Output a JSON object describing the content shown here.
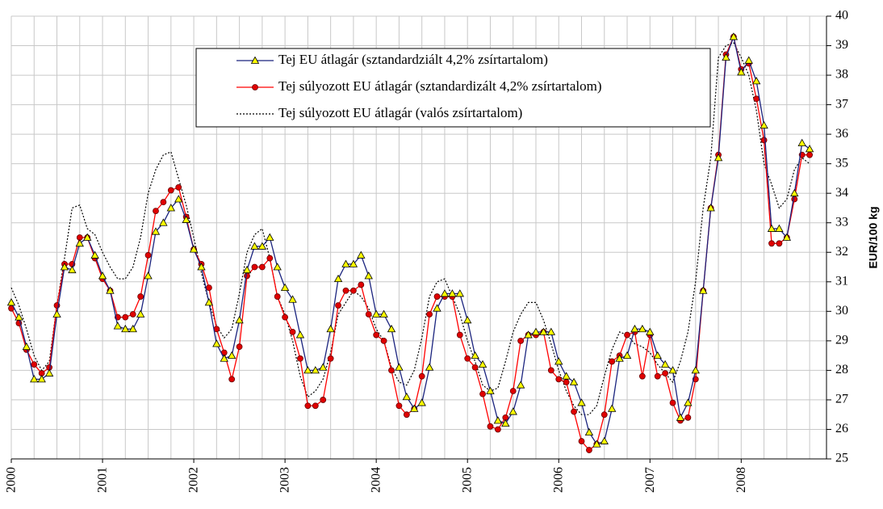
{
  "chart_data": {
    "type": "line",
    "y_label": "EUR/100 kg",
    "categories": [
      "2000",
      null,
      null,
      null,
      null,
      null,
      null,
      null,
      null,
      null,
      null,
      null,
      "2001",
      null,
      null,
      null,
      null,
      null,
      null,
      null,
      null,
      null,
      null,
      null,
      "2002",
      null,
      null,
      null,
      null,
      null,
      null,
      null,
      null,
      null,
      null,
      null,
      "2003",
      null,
      null,
      null,
      null,
      null,
      null,
      null,
      null,
      null,
      null,
      null,
      "2004",
      null,
      null,
      null,
      null,
      null,
      null,
      null,
      null,
      null,
      null,
      null,
      "2005",
      null,
      null,
      null,
      null,
      null,
      null,
      null,
      null,
      null,
      null,
      null,
      "2006",
      null,
      null,
      null,
      null,
      null,
      null,
      null,
      null,
      null,
      null,
      null,
      "2007",
      null,
      null,
      null,
      null,
      null,
      null,
      null,
      null,
      null,
      null,
      null,
      "2008",
      null,
      null,
      null,
      null,
      null,
      null,
      null,
      null,
      null
    ],
    "ylim": [
      25,
      40
    ],
    "yticks": [
      25,
      26,
      27,
      28,
      29,
      30,
      31,
      32,
      33,
      34,
      35,
      36,
      37,
      38,
      39,
      40
    ],
    "y_axis_side": "right",
    "grid": true,
    "series": [
      {
        "name": "Tej EU átlagár (sztandardziált 4,2% zsírtartalom)",
        "color": "#1a237e",
        "marker": "triangle",
        "marker_color": "#ffff00",
        "dashed": false,
        "values": [
          30.3,
          29.8,
          28.8,
          27.7,
          27.7,
          27.9,
          29.9,
          31.5,
          31.4,
          32.3,
          32.5,
          31.9,
          31.2,
          30.7,
          29.5,
          29.4,
          29.4,
          29.9,
          31.2,
          32.7,
          33.0,
          33.5,
          33.8,
          33.1,
          32.1,
          31.5,
          30.3,
          28.9,
          28.4,
          28.5,
          29.7,
          31.4,
          32.2,
          32.2,
          32.5,
          31.5,
          30.8,
          30.4,
          29.2,
          28.0,
          28.0,
          28.1,
          29.4,
          31.1,
          31.6,
          31.6,
          31.9,
          31.2,
          29.9,
          29.9,
          29.4,
          28.1,
          27.1,
          26.7,
          26.9,
          28.1,
          30.1,
          30.6,
          30.6,
          30.6,
          29.7,
          28.5,
          28.2,
          27.3,
          26.3,
          26.2,
          26.6,
          27.5,
          29.2,
          29.3,
          29.3,
          29.3,
          28.3,
          27.8,
          27.6,
          26.9,
          25.9,
          25.5,
          25.6,
          26.7,
          28.4,
          28.5,
          29.4,
          29.4,
          29.3,
          28.5,
          28.2,
          28.0,
          26.4,
          26.9,
          28.0,
          30.7,
          33.5,
          35.2,
          38.6,
          39.3,
          38.1,
          38.5,
          37.8,
          36.3,
          32.8,
          32.8,
          32.5,
          34.0,
          35.7,
          35.5
        ]
      },
      {
        "name": "Tej súlyozott EU átlagár (sztandardizált 4,2% zsírtartalom)",
        "color": "#ff0000",
        "marker": "circle",
        "marker_color": "#e00000",
        "dashed": false,
        "values": [
          30.1,
          29.6,
          28.7,
          28.2,
          27.9,
          28.1,
          30.2,
          31.6,
          31.6,
          32.5,
          32.5,
          31.8,
          31.1,
          30.7,
          29.8,
          29.8,
          29.9,
          30.5,
          31.9,
          33.4,
          33.7,
          34.1,
          34.2,
          33.2,
          32.1,
          31.6,
          30.8,
          29.4,
          28.6,
          27.7,
          28.8,
          31.2,
          31.5,
          31.5,
          31.8,
          30.5,
          29.8,
          29.3,
          28.4,
          26.8,
          26.8,
          27.0,
          28.4,
          30.2,
          30.7,
          30.7,
          30.9,
          29.9,
          29.2,
          29.0,
          28.0,
          26.8,
          26.5,
          26.7,
          27.8,
          29.9,
          30.5,
          30.5,
          30.5,
          29.2,
          28.4,
          28.1,
          27.2,
          26.1,
          26.0,
          26.4,
          27.3,
          29.0,
          29.2,
          29.2,
          29.3,
          28.0,
          27.7,
          27.6,
          26.6,
          25.6,
          25.3,
          25.5,
          26.5,
          28.3,
          28.5,
          29.2,
          29.3,
          27.8,
          29.2,
          27.8,
          27.9,
          26.9,
          26.3,
          26.4,
          27.7,
          30.7,
          33.5,
          35.3,
          38.7,
          39.3,
          38.2,
          38.4,
          37.2,
          35.8,
          32.3,
          32.3,
          32.5,
          33.8,
          35.3,
          35.3
        ]
      },
      {
        "name": "Tej súlyozott EU átlagár (valós zsírtartalom)",
        "color": "#000000",
        "marker": null,
        "dashed": true,
        "values": [
          30.8,
          30.2,
          29.4,
          28.5,
          28.0,
          28.3,
          30.2,
          31.8,
          33.5,
          33.6,
          32.8,
          32.6,
          32.0,
          31.5,
          31.1,
          31.1,
          31.5,
          32.5,
          34.0,
          34.8,
          35.3,
          35.4,
          34.5,
          33.6,
          32.5,
          31.3,
          30.3,
          29.5,
          29.1,
          29.4,
          30.6,
          32.0,
          32.6,
          32.8,
          31.8,
          30.5,
          29.9,
          29.0,
          27.8,
          27.1,
          27.3,
          27.7,
          28.6,
          29.9,
          30.3,
          30.7,
          30.5,
          30.1,
          29.4,
          29.0,
          28.1,
          27.6,
          27.5,
          28.0,
          29.1,
          30.5,
          31.0,
          31.1,
          30.5,
          29.9,
          29.0,
          28.3,
          27.5,
          27.3,
          27.4,
          28.3,
          29.3,
          29.9,
          30.3,
          30.3,
          29.7,
          28.9,
          28.0,
          27.3,
          26.8,
          26.5,
          26.5,
          26.8,
          27.8,
          28.7,
          29.3,
          29.2,
          28.9,
          28.8,
          28.6,
          28.2,
          27.9,
          27.6,
          28.3,
          29.3,
          31.0,
          33.5,
          35.2,
          38.6,
          39.0,
          39.1,
          38.6,
          38.0,
          36.8,
          35.0,
          34.3,
          33.5,
          33.8,
          34.8,
          35.2,
          35.0
        ]
      }
    ]
  }
}
